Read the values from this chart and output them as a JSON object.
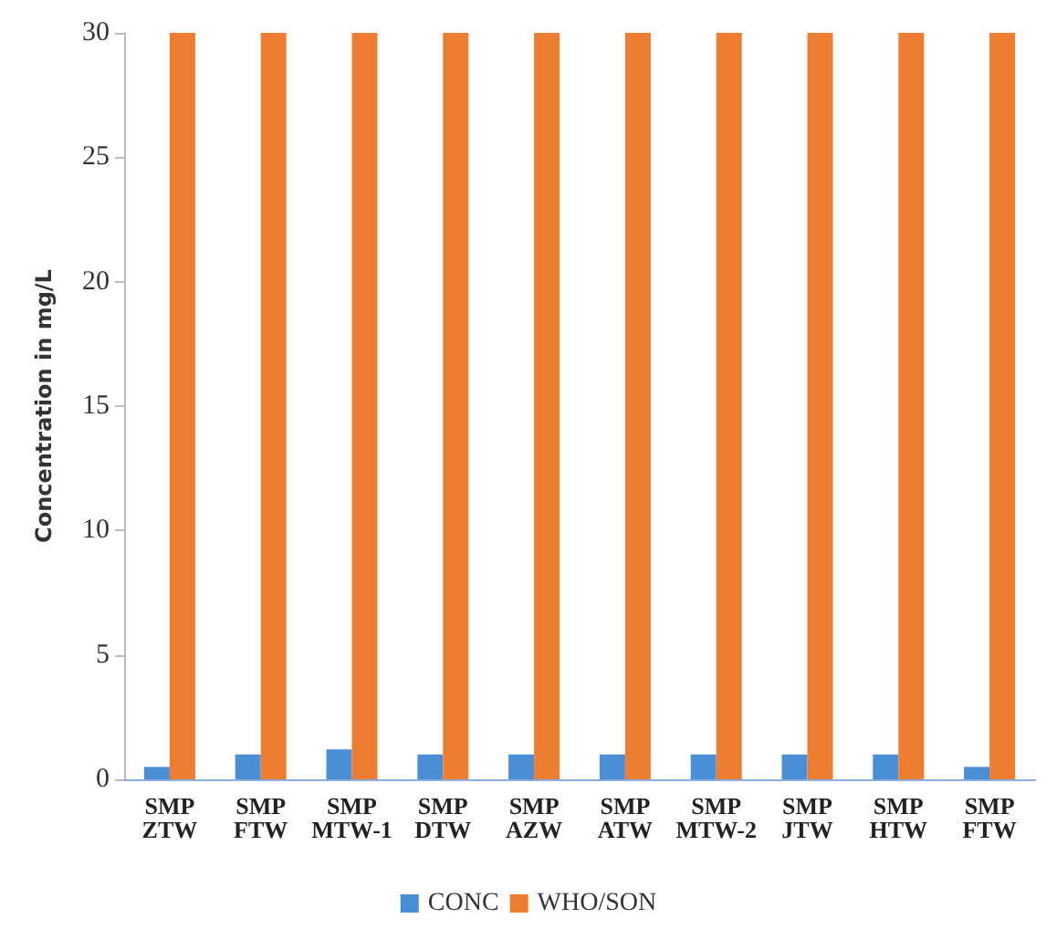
{
  "chart_data": {
    "type": "bar",
    "ylabel": "Concentration in mg/L",
    "categories": [
      "SMP ZTW",
      "SMP FTW",
      "SMP MTW-1",
      "SMP DTW",
      "SMP AZW",
      "SMP ATW",
      "SMP MTW-2",
      "SMP JTW",
      "SMP HTW",
      "SMP FTW"
    ],
    "series": [
      {
        "name": "CONC",
        "color": "#4a8fd6",
        "values": [
          0.5,
          1.0,
          1.2,
          1.0,
          1.0,
          1.0,
          1.0,
          1.0,
          1.0,
          0.5
        ]
      },
      {
        "name": "WHO/SON",
        "color": "#ed7d31",
        "values": [
          30,
          30,
          30,
          30,
          30,
          30,
          30,
          30,
          30,
          30
        ]
      }
    ],
    "ylim": [
      0,
      30
    ],
    "yticks": [
      0,
      5,
      10,
      15,
      20,
      25,
      30
    ],
    "grid": false,
    "legend": "bottom"
  }
}
